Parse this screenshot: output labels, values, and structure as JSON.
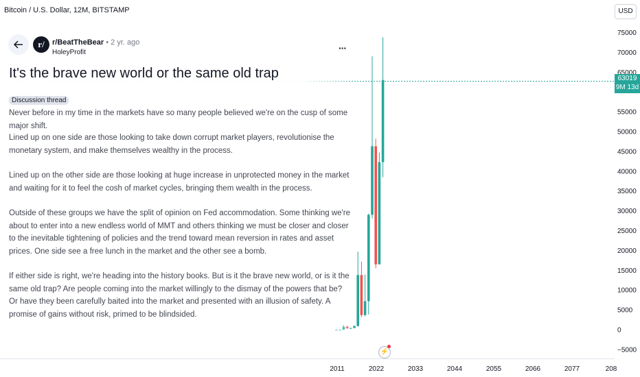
{
  "header": {
    "symbol_title": "Bitcoin / U.S. Dollar, 12M, BITSTAMP",
    "currency": "USD"
  },
  "price_axis": {
    "ticks": [
      "75000",
      "70000",
      "65000",
      "55000",
      "50000",
      "45000",
      "40000",
      "35000",
      "30000",
      "25000",
      "20000",
      "15000",
      "10000",
      "5000",
      "0",
      "−5000"
    ],
    "current_price": "63019",
    "countdown": "9M 13d"
  },
  "time_axis": {
    "ticks": [
      "2011",
      "2022",
      "2033",
      "2044",
      "2055",
      "2066",
      "2077",
      "208"
    ]
  },
  "post": {
    "author": "r/BeatTheBear",
    "time_ago": "• 2 yr. ago",
    "author_sub": "HoleyProfit",
    "title": "It's the brave new world or the same old trap",
    "tag": "Discussion thread",
    "paragraphs": [
      "Never before in my time in the markets have so many people believed we're on the cusp of some major shift.",
      "Lined up on one side are those looking to take down corrupt market players, revolutionise the monetary system, and make themselves wealthy in the process.",
      "Lined up on the other side are those looking at huge increase in unprotected money in the market and waiting for it to feel the cosh of market cycles, bringing them wealth in the process.",
      "Outside of these groups we have the split of opinion on Fed accommodation. Some thinking we're about to enter into a new endless world of MMT and others thinking we must be closer and closer to the inevitable tightening of policies and the trend toward mean reversion in rates and asset prices. One side see a free lunch in the market and the other see a bomb.",
      "If either side is right, we're heading into the history books. But is it the brave new world, or is it the same old trap? Are people coming into the market willingly to the dismay of the powers that be? Or have they been carefully baited into the market and presented with an illusion of safety. A promise of gains without risk, primed to be blindsided."
    ]
  },
  "colors": {
    "up": "#26a69a",
    "down": "#ef5350",
    "accent": "#26a69a"
  },
  "icons": {
    "back": "arrow-left-icon",
    "more": "more-dots-icon",
    "flash": "lightning-icon"
  },
  "chart_data": {
    "type": "candlestick",
    "title": "Bitcoin / U.S. Dollar, 12M, BITSTAMP",
    "ylim": [
      -7000,
      77000
    ],
    "candles": [
      {
        "x": 2011.0,
        "open": 0,
        "high": 30,
        "low": 0,
        "close": 5
      },
      {
        "x": 2012.0,
        "open": 5,
        "high": 15,
        "low": 4,
        "close": 13
      },
      {
        "x": 2013.0,
        "open": 13,
        "high": 1160,
        "low": 13,
        "close": 750
      },
      {
        "x": 2014.0,
        "open": 750,
        "high": 1000,
        "low": 300,
        "close": 320
      },
      {
        "x": 2015.0,
        "open": 320,
        "high": 500,
        "low": 160,
        "close": 430
      },
      {
        "x": 2016.0,
        "open": 430,
        "high": 1000,
        "low": 360,
        "close": 960
      },
      {
        "x": 2017.0,
        "open": 960,
        "high": 19700,
        "low": 750,
        "close": 13800
      },
      {
        "x": 2018.0,
        "open": 13800,
        "high": 17200,
        "low": 3200,
        "close": 3700
      },
      {
        "x": 2019.0,
        "open": 3700,
        "high": 13900,
        "low": 3400,
        "close": 7200
      },
      {
        "x": 2020.0,
        "open": 7200,
        "high": 29300,
        "low": 3850,
        "close": 29000
      },
      {
        "x": 2021.0,
        "open": 29000,
        "high": 69000,
        "low": 28100,
        "close": 46300
      },
      {
        "x": 2022.0,
        "open": 46300,
        "high": 48200,
        "low": 15500,
        "close": 16500
      },
      {
        "x": 2023.0,
        "open": 16500,
        "high": 44700,
        "low": 16500,
        "close": 42300
      },
      {
        "x": 2024.0,
        "open": 42300,
        "high": 73800,
        "low": 38500,
        "close": 63019
      }
    ]
  }
}
